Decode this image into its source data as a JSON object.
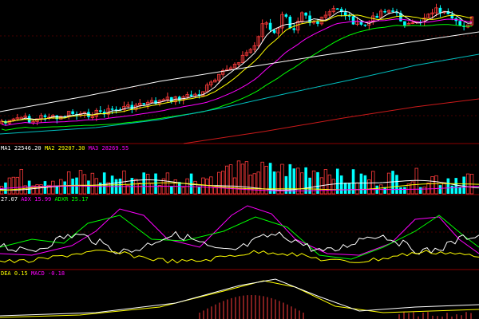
{
  "colors": {
    "background": "#000000",
    "divider": "#8b0000",
    "grid": "#8b0000",
    "up": "#ff3b3b",
    "down": "#00ffff",
    "ma_white": "#ffffff",
    "ma_yellow": "#ffff00",
    "ma_magenta": "#ff00ff",
    "ma_green": "#00ff00",
    "ma_teal": "#00bfbf",
    "ma_red": "#cc1a1a",
    "dea": "#ffff00",
    "macd_bar": "#ff3b3b"
  },
  "panels": {
    "volume_label": {
      "ma1_key": "MA1",
      "ma1_value": "22546.20",
      "ma2_key": "MA2",
      "ma2_value": "29207.30",
      "ma3_key": "MA3",
      "ma3_value": "28269.55"
    },
    "dmi_label": {
      "pdi_value": "27.07",
      "adx_key": "ADX",
      "adx_value": "15.99",
      "adxr_key": "ADXR",
      "adxr_value": "25.17"
    },
    "macd_label": {
      "dea_key": "DEA",
      "dea_value": "0.15",
      "macd_key": "MACD",
      "macd_value": "-0.18"
    }
  },
  "chart_data": [
    {
      "type": "candlestick",
      "panel": "price",
      "count": 120,
      "trend": "uptrend with moving averages",
      "grid": true
    },
    {
      "type": "bar",
      "panel": "volume",
      "series": [
        {
          "name": "MA1",
          "value": 22546.2
        },
        {
          "name": "MA2",
          "value": 29207.3
        },
        {
          "name": "MA3",
          "value": 28269.55
        }
      ]
    },
    {
      "type": "line",
      "panel": "dmi",
      "series": [
        {
          "name": "ADX",
          "value": 15.99
        },
        {
          "name": "ADXR",
          "value": 25.17
        }
      ]
    },
    {
      "type": "bar",
      "panel": "macd",
      "series": [
        {
          "name": "DEA",
          "value": 0.15
        },
        {
          "name": "MACD",
          "value": -0.18
        }
      ]
    }
  ]
}
